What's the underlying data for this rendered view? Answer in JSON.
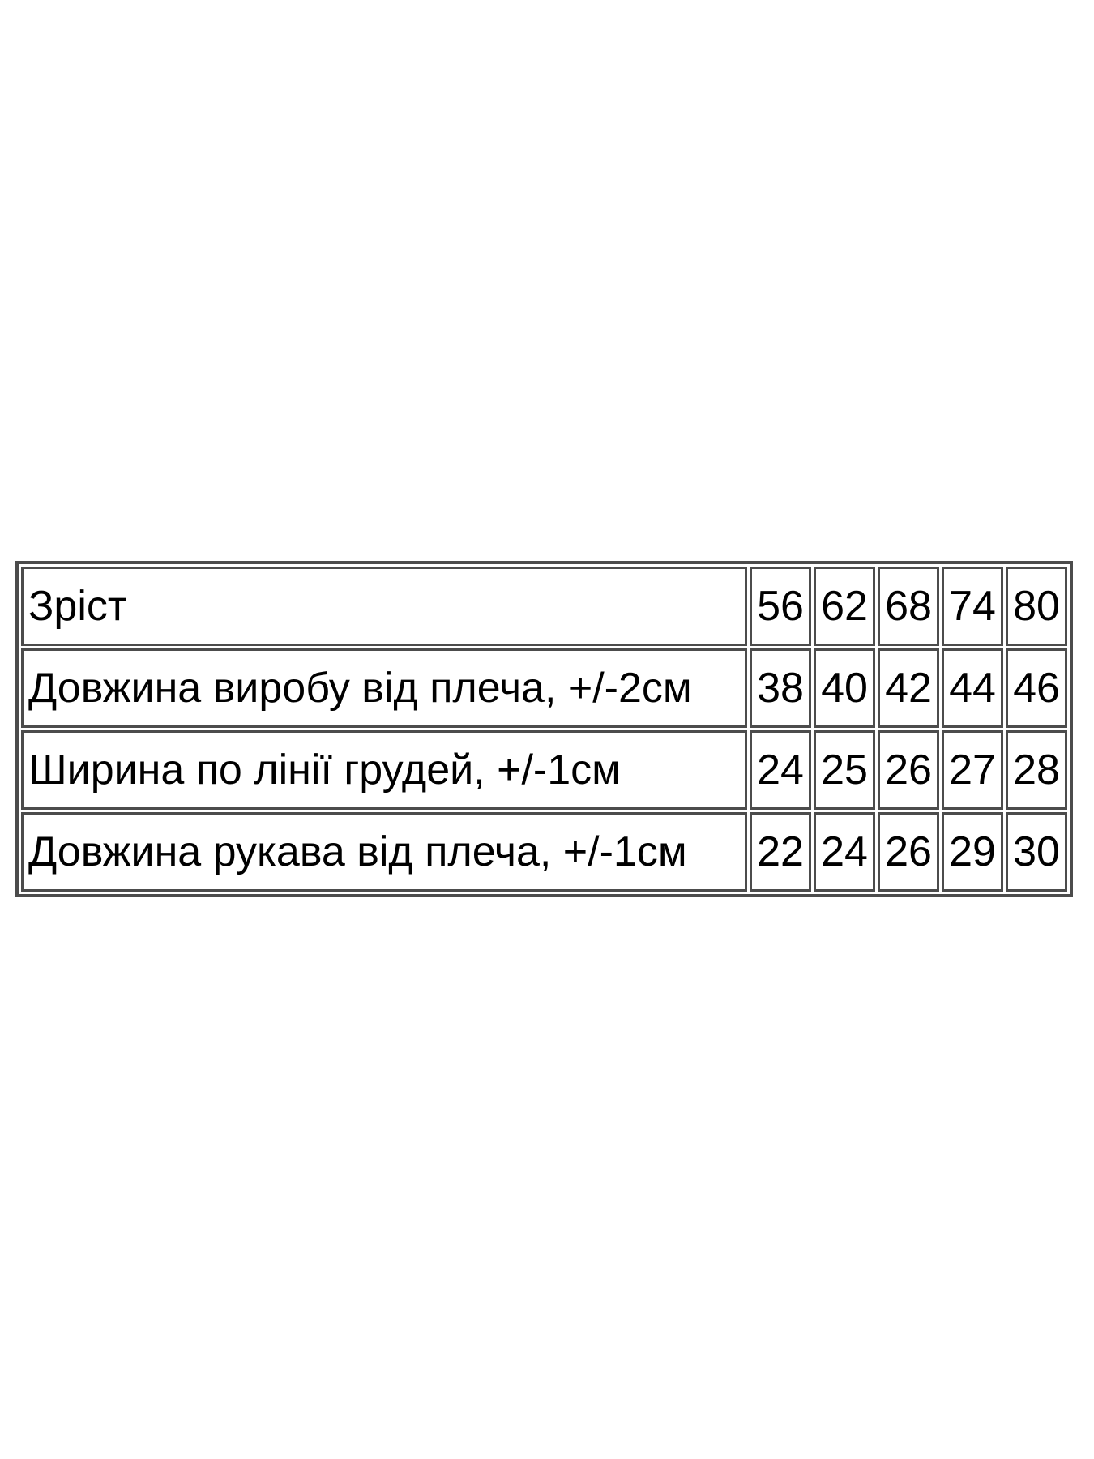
{
  "chart_data": {
    "type": "table",
    "description": "clothing-size-chart",
    "rows": [
      {
        "label": "Зріст",
        "values": [
          "56",
          "62",
          "68",
          "74",
          "80"
        ]
      },
      {
        "label": "Довжина виробу від плеча, +/-2см",
        "values": [
          "38",
          "40",
          "42",
          "44",
          "46"
        ]
      },
      {
        "label": "Ширина по лінії грудей, +/-1см",
        "values": [
          "24",
          "25",
          "26",
          "27",
          "28"
        ]
      },
      {
        "label": "Довжина рукава від плеча, +/-1см",
        "values": [
          "22",
          "24",
          "26",
          "29",
          "30"
        ]
      }
    ]
  },
  "colors": {
    "border": "#4c4c4c",
    "text": "#000000",
    "background": "#ffffff"
  }
}
